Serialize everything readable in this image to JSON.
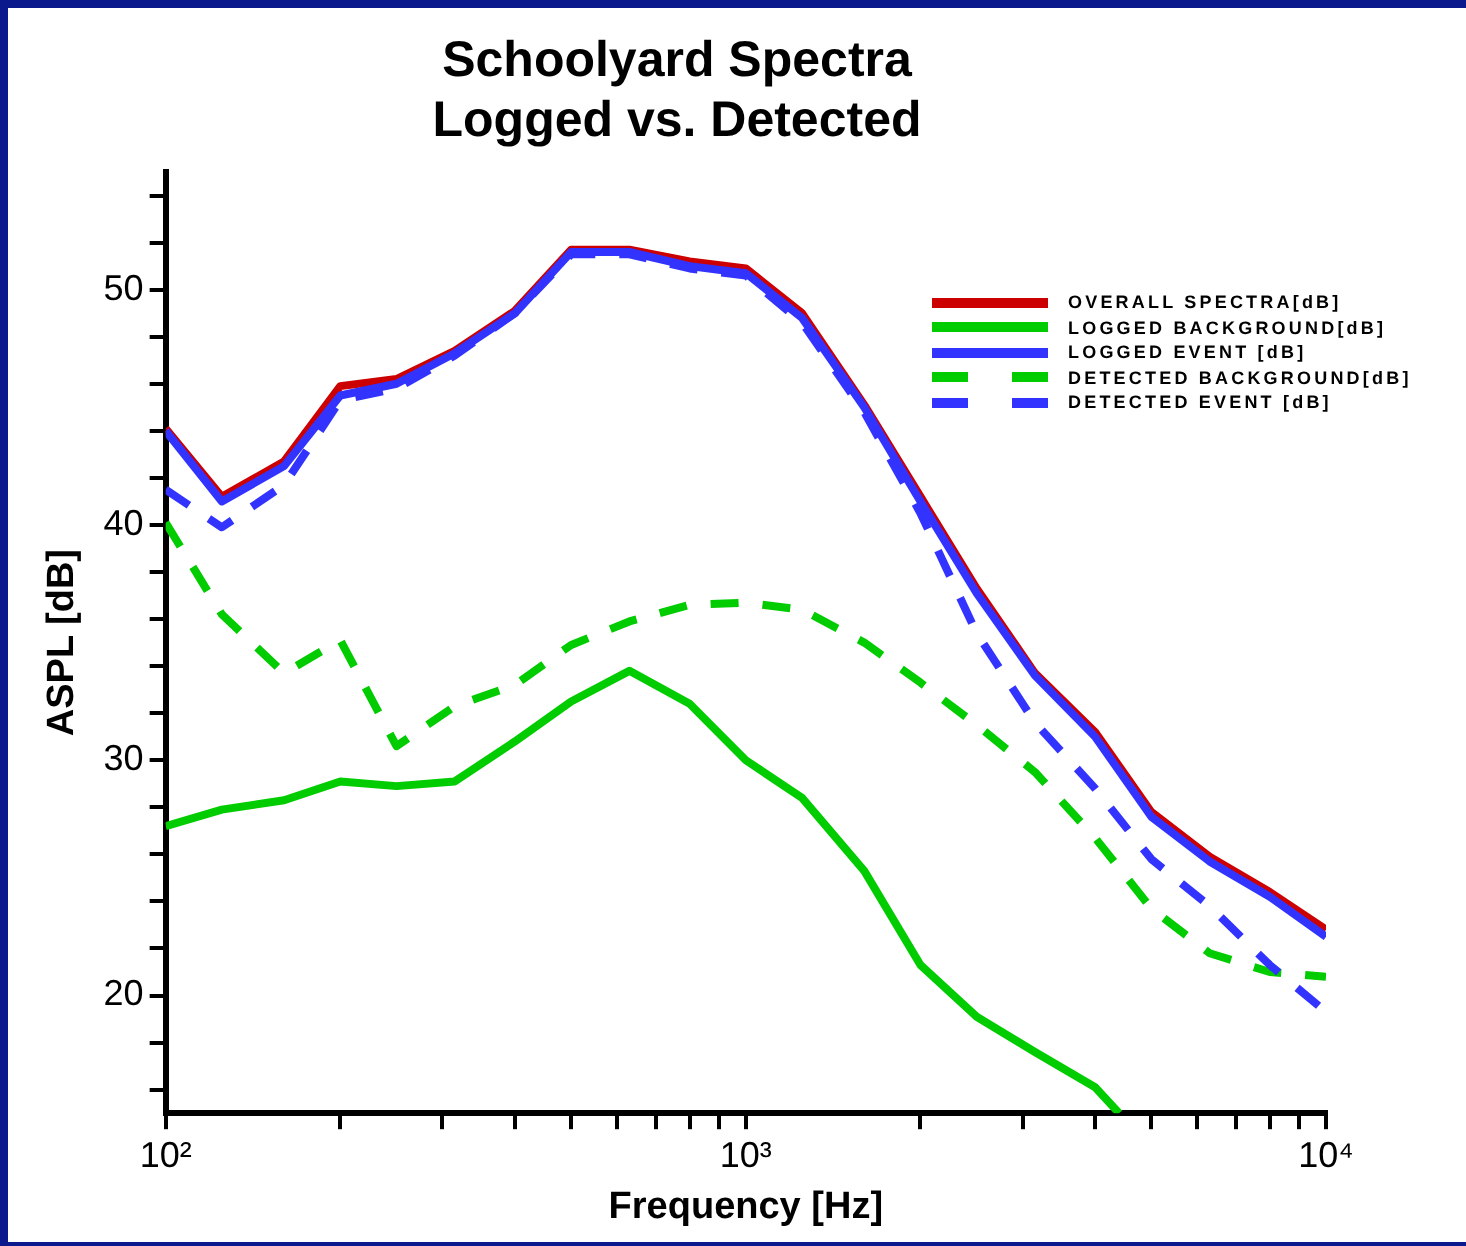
{
  "chart_data": {
    "type": "line",
    "title": "Schoolyard Spectra\nLogged vs. Detected",
    "xlabel": "Frequency [Hz]",
    "ylabel": "ASPL [dB]",
    "log": "x",
    "x": [
      100,
      125,
      160,
      200,
      250,
      315,
      400,
      500,
      630,
      800,
      1000,
      1250,
      1600,
      2000,
      2500,
      3150,
      4000,
      5000,
      6300,
      8000,
      10000
    ],
    "series": [
      {
        "name": "OVERALL SPECTRA[dB]",
        "color": "#cc0000",
        "line_style": "solid",
        "values": [
          44.1,
          41.2,
          42.7,
          45.9,
          46.2,
          47.4,
          49.1,
          51.7,
          51.7,
          51.2,
          50.9,
          49.0,
          45.1,
          41.2,
          37.3,
          33.7,
          31.2,
          27.8,
          25.9,
          24.4,
          22.8
        ]
      },
      {
        "name": "LOGGED BACKGROUND[dB]",
        "color": "#00cc00",
        "line_style": "solid",
        "x": [
          100,
          125,
          160,
          200,
          250,
          315,
          400,
          500,
          630,
          800,
          1000,
          1250,
          1600,
          2000,
          2500,
          3150,
          4000,
          4400
        ],
        "values": [
          27.2,
          27.9,
          28.3,
          29.1,
          28.9,
          29.1,
          30.8,
          32.5,
          33.8,
          32.4,
          30.0,
          28.4,
          25.3,
          21.3,
          19.1,
          17.6,
          16.1,
          15.0
        ]
      },
      {
        "name": "LOGGED EVENT [dB]",
        "color": "#3333ff",
        "line_style": "solid",
        "values": [
          44.0,
          41.0,
          42.5,
          45.5,
          46.0,
          47.3,
          49.0,
          51.6,
          51.6,
          51.0,
          50.7,
          48.8,
          45.0,
          41.0,
          37.1,
          33.6,
          31.0,
          27.6,
          25.7,
          24.2,
          22.5
        ]
      },
      {
        "name": "DETECTED BACKGROUND[dB]",
        "color": "#00cc00",
        "line_style": "dashed",
        "values": [
          40.1,
          36.2,
          33.7,
          35.1,
          30.6,
          32.3,
          33.2,
          34.9,
          35.9,
          36.6,
          36.7,
          36.4,
          35.0,
          33.3,
          31.5,
          29.5,
          26.7,
          23.7,
          21.8,
          21.0,
          20.8
        ]
      },
      {
        "name": "DETECTED EVENT [dB]",
        "color": "#3333ff",
        "line_style": "dashed",
        "values": [
          41.5,
          39.9,
          41.7,
          45.3,
          45.8,
          47.2,
          49.0,
          51.5,
          51.5,
          50.9,
          50.6,
          48.6,
          44.8,
          40.5,
          35.4,
          31.6,
          28.8,
          25.8,
          23.8,
          21.3,
          19.3
        ]
      }
    ],
    "xlim": [
      100,
      10000
    ],
    "xticks": [
      {
        "value": 100,
        "label": "10²"
      },
      {
        "value": 200,
        "label": null
      },
      {
        "value": 300,
        "label": null
      },
      {
        "value": 400,
        "label": null
      },
      {
        "value": 500,
        "label": null
      },
      {
        "value": 600,
        "label": null
      },
      {
        "value": 700,
        "label": null
      },
      {
        "value": 800,
        "label": null
      },
      {
        "value": 900,
        "label": null
      },
      {
        "value": 1000,
        "label": "10³"
      },
      {
        "value": 2000,
        "label": null
      },
      {
        "value": 3000,
        "label": null
      },
      {
        "value": 4000,
        "label": null
      },
      {
        "value": 5000,
        "label": null
      },
      {
        "value": 6000,
        "label": null
      },
      {
        "value": 7000,
        "label": null
      },
      {
        "value": 8000,
        "label": null
      },
      {
        "value": 9000,
        "label": null
      },
      {
        "value": 10000,
        "label": "10⁴"
      }
    ],
    "ylim": [
      15,
      55
    ],
    "yticks": [
      {
        "value": 16,
        "label": null
      },
      {
        "value": 18,
        "label": null
      },
      20,
      {
        "value": 22,
        "label": null
      },
      {
        "value": 24,
        "label": null
      },
      {
        "value": 26,
        "label": null
      },
      {
        "value": 28,
        "label": null
      },
      30,
      {
        "value": 32,
        "label": null
      },
      {
        "value": 34,
        "label": null
      },
      {
        "value": 36,
        "label": null
      },
      {
        "value": 38,
        "label": null
      },
      40,
      {
        "value": 42,
        "label": null
      },
      {
        "value": 44,
        "label": null
      },
      {
        "value": 46,
        "label": null
      },
      {
        "value": 48,
        "label": null
      },
      50,
      {
        "value": 52,
        "label": null
      },
      {
        "value": 54,
        "label": null
      }
    ],
    "grid": false,
    "legend": "top right",
    "marker": "none"
  }
}
